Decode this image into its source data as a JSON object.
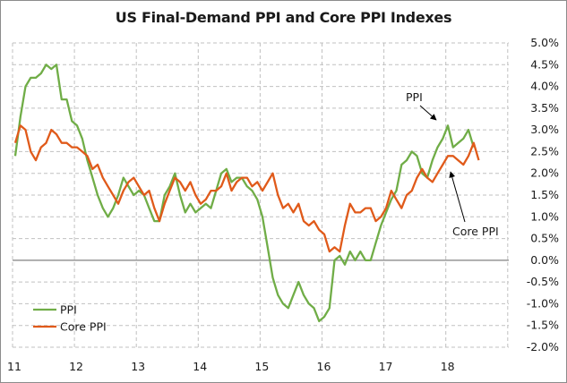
{
  "chart_data": {
    "type": "line",
    "title": "US Final-Demand PPI and Core PPI Indexes",
    "xlabel": "",
    "ylabel": "",
    "x_start": "2011-01",
    "frequency": "monthly",
    "x_tick_labels": [
      "11",
      "12",
      "13",
      "14",
      "15",
      "16",
      "17",
      "18"
    ],
    "y_tick_labels": [
      "5.0%",
      "4.5%",
      "4.0%",
      "3.5%",
      "3.0%",
      "2.5%",
      "2.0%",
      "1.5%",
      "1.0%",
      "0.5%",
      "0.0%",
      "-0.5%",
      "-1.0%",
      "-1.5%",
      "-2.0%"
    ],
    "ylim": [
      -2.0,
      5.0
    ],
    "y_step": 0.5,
    "y_axis_side": "right",
    "grid": true,
    "legend_position": "bottom-left",
    "series": [
      {
        "name": "PPI",
        "color": "#70ad47",
        "values": [
          2.4,
          3.3,
          4.0,
          4.2,
          4.2,
          4.3,
          4.5,
          4.4,
          4.5,
          3.7,
          3.7,
          3.2,
          3.1,
          2.8,
          2.3,
          1.9,
          1.5,
          1.2,
          1.0,
          1.2,
          1.5,
          1.9,
          1.7,
          1.5,
          1.6,
          1.5,
          1.2,
          0.9,
          0.9,
          1.5,
          1.7,
          2.0,
          1.5,
          1.1,
          1.3,
          1.1,
          1.2,
          1.3,
          1.2,
          1.6,
          2.0,
          2.1,
          1.8,
          1.9,
          1.9,
          1.7,
          1.6,
          1.4,
          1.0,
          0.3,
          -0.4,
          -0.8,
          -1.0,
          -1.1,
          -0.8,
          -0.5,
          -0.8,
          -1.0,
          -1.1,
          -1.4,
          -1.3,
          -1.1,
          0.0,
          0.1,
          -0.1,
          0.2,
          0.0,
          0.2,
          0.0,
          0.0,
          0.4,
          0.8,
          1.1,
          1.4,
          1.6,
          2.2,
          2.3,
          2.5,
          2.4,
          2.0,
          1.9,
          2.3,
          2.6,
          2.8,
          3.1,
          2.6,
          2.7,
          2.8,
          3.0,
          2.6
        ]
      },
      {
        "name": "Core PPI",
        "color": "#e05a1a",
        "values": [
          2.7,
          3.1,
          3.0,
          2.5,
          2.3,
          2.6,
          2.7,
          3.0,
          2.9,
          2.7,
          2.7,
          2.6,
          2.6,
          2.5,
          2.4,
          2.1,
          2.2,
          1.9,
          1.7,
          1.5,
          1.3,
          1.6,
          1.8,
          1.9,
          1.7,
          1.5,
          1.6,
          1.2,
          0.9,
          1.3,
          1.6,
          1.9,
          1.8,
          1.6,
          1.8,
          1.5,
          1.3,
          1.4,
          1.6,
          1.6,
          1.7,
          2.0,
          1.6,
          1.8,
          1.9,
          1.9,
          1.7,
          1.8,
          1.6,
          1.8,
          2.0,
          1.5,
          1.2,
          1.3,
          1.1,
          1.3,
          0.9,
          0.8,
          0.9,
          0.7,
          0.6,
          0.2,
          0.3,
          0.2,
          0.8,
          1.3,
          1.1,
          1.1,
          1.2,
          1.2,
          0.9,
          1.0,
          1.2,
          1.6,
          1.4,
          1.2,
          1.5,
          1.6,
          1.9,
          2.1,
          1.9,
          1.8,
          2.0,
          2.2,
          2.4,
          2.4,
          2.3,
          2.2,
          2.4,
          2.7,
          2.3
        ]
      }
    ],
    "annotations": [
      {
        "text": "PPI",
        "points_to_series": "PPI",
        "near": "2017-11"
      },
      {
        "text": "Core PPI",
        "points_to_series": "Core PPI",
        "near": "2017-12"
      }
    ]
  }
}
